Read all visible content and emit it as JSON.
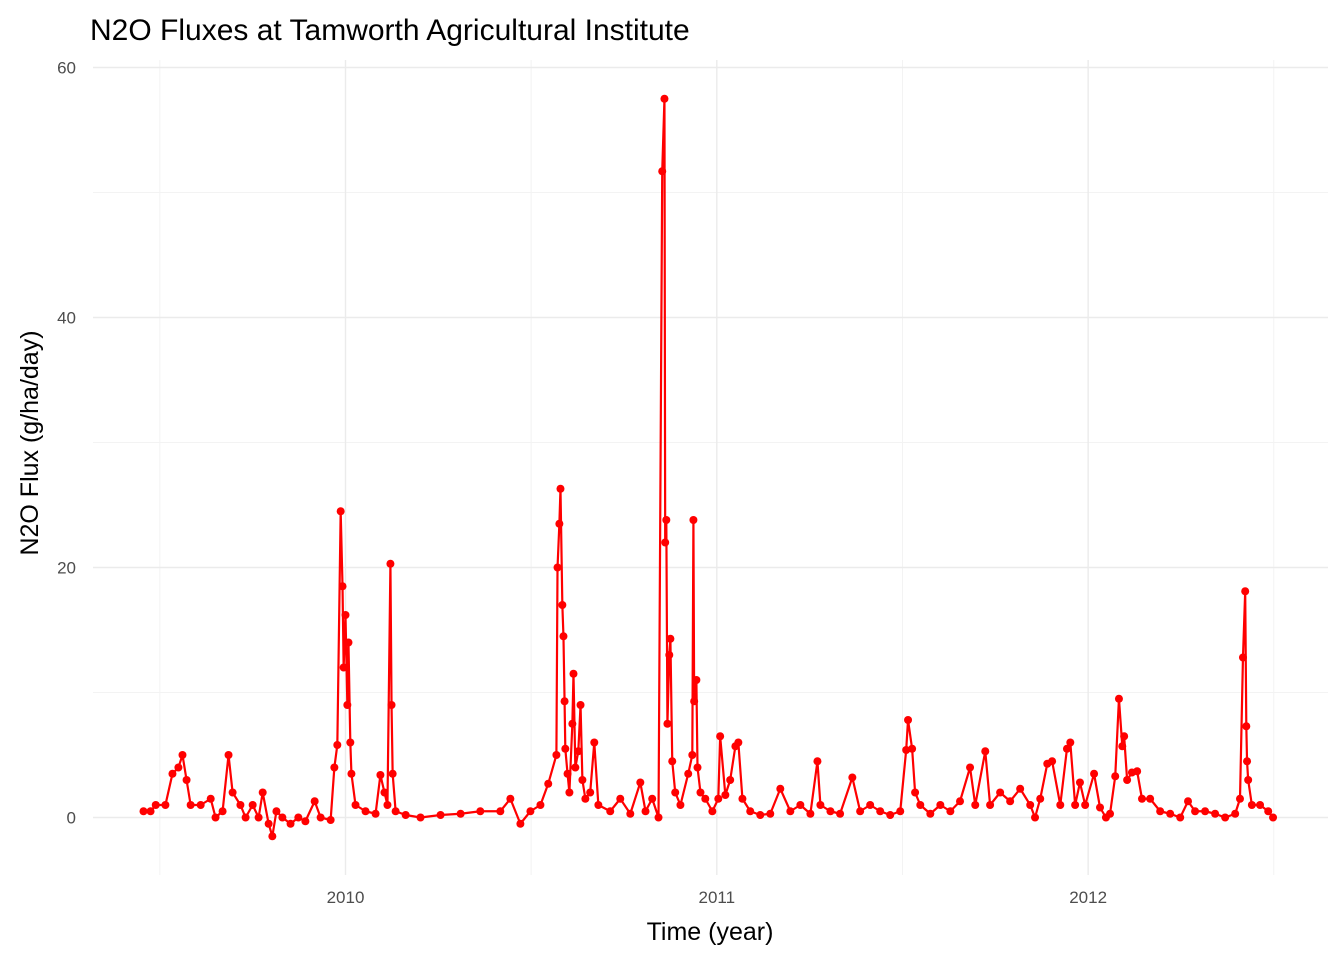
{
  "chart_data": {
    "type": "line",
    "title": "N2O Fluxes at Tamworth Agricultural Institute",
    "x_label": "Time (year)",
    "y_label": "N2O Flux (g/ha/day)",
    "xlim": [
      2009.32,
      2012.646
    ],
    "xticks": [
      2010,
      2011,
      2012
    ],
    "ylim": [
      -4.6,
      60.6
    ],
    "yticks": [
      0,
      20,
      40,
      60
    ],
    "grid": true,
    "series": [
      {
        "name": "N2O Flux",
        "color": "#ff0000",
        "x": [
          2009.456,
          2009.475,
          2009.489,
          2009.515,
          2009.534,
          2009.55,
          2009.561,
          2009.572,
          2009.583,
          2009.61,
          2009.637,
          2009.65,
          2009.669,
          2009.685,
          2009.696,
          2009.717,
          2009.731,
          2009.75,
          2009.766,
          2009.777,
          2009.793,
          2009.803,
          2009.814,
          2009.83,
          2009.852,
          2009.873,
          2009.892,
          2009.917,
          2009.933,
          2009.96,
          2009.97,
          2009.978,
          2009.987,
          2009.992,
          2009.995,
          2010.0,
          2010.005,
          2010.008,
          2010.013,
          2010.016,
          2010.027,
          2010.054,
          2010.081,
          2010.094,
          2010.105,
          2010.113,
          2010.121,
          2010.124,
          2010.127,
          2010.135,
          2010.162,
          2010.202,
          2010.256,
          2010.31,
          2010.363,
          2010.417,
          2010.444,
          2010.471,
          2010.498,
          2010.525,
          2010.546,
          2010.568,
          2010.571,
          2010.576,
          2010.579,
          2010.584,
          2010.587,
          2010.59,
          2010.592,
          2010.598,
          2010.603,
          2010.611,
          2010.614,
          2010.619,
          2010.627,
          2010.633,
          2010.638,
          2010.646,
          2010.659,
          2010.67,
          2010.681,
          2010.713,
          2010.74,
          2010.767,
          2010.794,
          2010.808,
          2010.826,
          2010.843,
          2010.853,
          2010.859,
          2010.861,
          2010.864,
          2010.867,
          2010.872,
          2010.875,
          2010.88,
          2010.888,
          2010.902,
          2010.923,
          2010.934,
          2010.937,
          2010.939,
          2010.945,
          2010.948,
          2010.956,
          2010.969,
          2010.988,
          2011.004,
          2011.009,
          2011.023,
          2011.036,
          2011.05,
          2011.058,
          2011.069,
          2011.09,
          2011.117,
          2011.144,
          2011.171,
          2011.198,
          2011.225,
          2011.252,
          2011.271,
          2011.279,
          2011.306,
          2011.332,
          2011.365,
          2011.386,
          2011.413,
          2011.44,
          2011.467,
          2011.494,
          2011.51,
          2011.515,
          2011.526,
          2011.534,
          2011.548,
          2011.575,
          2011.602,
          2011.629,
          2011.655,
          2011.682,
          2011.696,
          2011.723,
          2011.736,
          2011.763,
          2011.79,
          2011.817,
          2011.844,
          2011.857,
          2011.871,
          2011.89,
          2011.903,
          2011.925,
          2011.943,
          2011.952,
          2011.965,
          2011.978,
          2011.992,
          2012.016,
          2012.032,
          2012.048,
          2012.059,
          2012.073,
          2012.083,
          2012.092,
          2012.097,
          2012.105,
          2012.118,
          2012.132,
          2012.145,
          2012.167,
          2012.194,
          2012.221,
          2012.248,
          2012.269,
          2012.288,
          2012.315,
          2012.342,
          2012.369,
          2012.396,
          2012.409,
          2012.417,
          2012.423,
          2012.426,
          2012.428,
          2012.431,
          2012.441,
          2012.463,
          2012.485,
          2012.498
        ],
        "values": [
          0.5,
          0.5,
          1,
          1,
          3.5,
          4,
          5,
          3,
          1,
          1,
          1.5,
          0,
          0.5,
          5,
          2,
          1,
          0,
          1,
          0,
          2,
          -0.5,
          -1.5,
          0.5,
          0,
          -0.5,
          0,
          -0.3,
          1.3,
          0,
          -0.2,
          4,
          5.8,
          24.5,
          18.5,
          12,
          16.2,
          9,
          14,
          6,
          3.5,
          1,
          0.5,
          0.3,
          3.4,
          2,
          1,
          20.3,
          9,
          3.5,
          0.5,
          0.2,
          0,
          0.2,
          0.3,
          0.5,
          0.5,
          1.5,
          -0.5,
          0.5,
          1,
          2.7,
          5,
          20,
          23.5,
          26.3,
          17,
          14.5,
          9.3,
          5.5,
          3.5,
          2,
          7.5,
          11.5,
          4,
          5.3,
          9,
          3,
          1.5,
          2,
          6,
          1,
          0.5,
          1.5,
          0.3,
          2.8,
          0.5,
          1.5,
          0,
          51.7,
          57.5,
          22,
          23.8,
          7.5,
          13,
          14.3,
          4.5,
          2,
          1,
          3.5,
          5,
          23.8,
          9.3,
          11,
          4,
          2,
          1.5,
          0.5,
          1.5,
          6.5,
          1.8,
          3,
          5.7,
          6,
          1.5,
          0.5,
          0.2,
          0.3,
          2.3,
          0.5,
          1,
          0.3,
          4.5,
          1,
          0.5,
          0.3,
          3.2,
          0.5,
          1,
          0.5,
          0.2,
          0.5,
          5.4,
          7.8,
          5.5,
          2,
          1,
          0.3,
          1,
          0.5,
          1.3,
          4,
          1,
          5.3,
          1,
          2,
          1.3,
          2.3,
          1,
          0,
          1.5,
          4.3,
          4.5,
          1,
          5.5,
          6,
          1,
          2.8,
          1,
          3.5,
          0.8,
          0,
          0.3,
          3.3,
          9.5,
          5.7,
          6.5,
          3,
          3.6,
          3.7,
          1.5,
          1.5,
          0.5,
          0.3,
          0,
          1.3,
          0.5,
          0.5,
          0.3,
          0,
          0.3,
          1.5,
          12.8,
          18.1,
          7.3,
          4.5,
          3,
          1,
          1,
          0.5,
          0
        ]
      }
    ]
  }
}
